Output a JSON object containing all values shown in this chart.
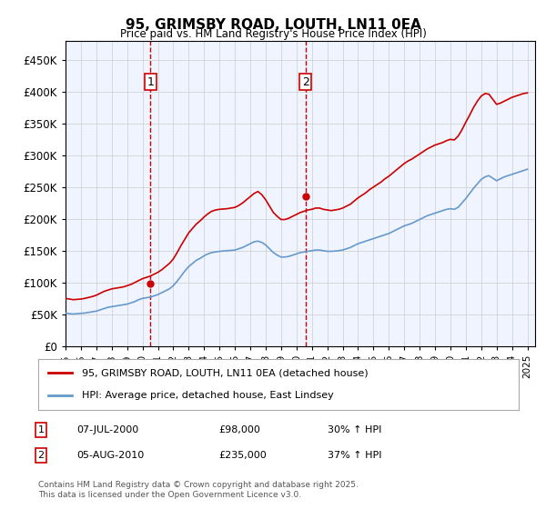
{
  "title": "95, GRIMSBY ROAD, LOUTH, LN11 0EA",
  "subtitle": "Price paid vs. HM Land Registry's House Price Index (HPI)",
  "ylabel_ticks": [
    "£0",
    "£50K",
    "£100K",
    "£150K",
    "£200K",
    "£250K",
    "£300K",
    "£350K",
    "£400K",
    "£450K"
  ],
  "ytick_values": [
    0,
    50000,
    100000,
    150000,
    200000,
    250000,
    300000,
    350000,
    400000,
    450000
  ],
  "ylim": [
    0,
    480000
  ],
  "xlim_start": 1995.0,
  "xlim_end": 2025.5,
  "background_color": "#f0f4ff",
  "plot_bg_color": "#f0f4ff",
  "red_line_color": "#cc0000",
  "blue_line_color": "#6699cc",
  "vline_color": "#cc0000",
  "grid_color": "#cccccc",
  "transaction1_x": 2000.52,
  "transaction1_y": 98000,
  "transaction2_x": 2010.59,
  "transaction2_y": 235000,
  "legend_label_red": "95, GRIMSBY ROAD, LOUTH, LN11 0EA (detached house)",
  "legend_label_blue": "HPI: Average price, detached house, East Lindsey",
  "footnote": "Contains HM Land Registry data © Crown copyright and database right 2025.\nThis data is licensed under the Open Government Licence v3.0.",
  "table_row1": "1    07-JUL-2000    £98,000    30% ↑ HPI",
  "table_row2": "2    05-AUG-2010    £235,000    37% ↑ HPI",
  "hpi_data": {
    "years": [
      1995.0,
      1995.25,
      1995.5,
      1995.75,
      1996.0,
      1996.25,
      1996.5,
      1996.75,
      1997.0,
      1997.25,
      1997.5,
      1997.75,
      1998.0,
      1998.25,
      1998.5,
      1998.75,
      1999.0,
      1999.25,
      1999.5,
      1999.75,
      2000.0,
      2000.25,
      2000.5,
      2000.75,
      2001.0,
      2001.25,
      2001.5,
      2001.75,
      2002.0,
      2002.25,
      2002.5,
      2002.75,
      2003.0,
      2003.25,
      2003.5,
      2003.75,
      2004.0,
      2004.25,
      2004.5,
      2004.75,
      2005.0,
      2005.25,
      2005.5,
      2005.75,
      2006.0,
      2006.25,
      2006.5,
      2006.75,
      2007.0,
      2007.25,
      2007.5,
      2007.75,
      2008.0,
      2008.25,
      2008.5,
      2008.75,
      2009.0,
      2009.25,
      2009.5,
      2009.75,
      2010.0,
      2010.25,
      2010.5,
      2010.75,
      2011.0,
      2011.25,
      2011.5,
      2011.75,
      2012.0,
      2012.25,
      2012.5,
      2012.75,
      2013.0,
      2013.25,
      2013.5,
      2013.75,
      2014.0,
      2014.25,
      2014.5,
      2014.75,
      2015.0,
      2015.25,
      2015.5,
      2015.75,
      2016.0,
      2016.25,
      2016.5,
      2016.75,
      2017.0,
      2017.25,
      2017.5,
      2017.75,
      2018.0,
      2018.25,
      2018.5,
      2018.75,
      2019.0,
      2019.25,
      2019.5,
      2019.75,
      2020.0,
      2020.25,
      2020.5,
      2020.75,
      2021.0,
      2021.25,
      2021.5,
      2021.75,
      2022.0,
      2022.25,
      2022.5,
      2022.75,
      2023.0,
      2023.25,
      2023.5,
      2023.75,
      2024.0,
      2024.25,
      2024.5,
      2024.75,
      2025.0
    ],
    "values": [
      52000,
      51000,
      50500,
      51000,
      51500,
      52000,
      53000,
      54000,
      55000,
      57000,
      59000,
      61000,
      62000,
      63000,
      64000,
      65000,
      66000,
      68000,
      70000,
      73000,
      75000,
      76000,
      77000,
      79000,
      81000,
      84000,
      87000,
      90000,
      95000,
      102000,
      110000,
      118000,
      125000,
      130000,
      135000,
      138000,
      142000,
      145000,
      147000,
      148000,
      149000,
      149500,
      150000,
      150500,
      151000,
      153000,
      155000,
      158000,
      161000,
      164000,
      165000,
      163000,
      159000,
      153000,
      147000,
      143000,
      140000,
      140000,
      141000,
      143000,
      145000,
      147000,
      148000,
      149000,
      150000,
      151000,
      151000,
      150000,
      149000,
      149000,
      149500,
      150000,
      151000,
      153000,
      155000,
      158000,
      161000,
      163000,
      165000,
      167000,
      169000,
      171000,
      173000,
      175000,
      177000,
      180000,
      183000,
      186000,
      189000,
      191000,
      193000,
      196000,
      199000,
      202000,
      205000,
      207000,
      209000,
      211000,
      213000,
      215000,
      216000,
      215000,
      218000,
      225000,
      232000,
      240000,
      248000,
      255000,
      262000,
      266000,
      268000,
      264000,
      260000,
      263000,
      266000,
      268000,
      270000,
      272000,
      274000,
      276000,
      278000
    ]
  },
  "hpi_red_data": {
    "years": [
      1995.0,
      1995.25,
      1995.5,
      1995.75,
      1996.0,
      1996.25,
      1996.5,
      1996.75,
      1997.0,
      1997.25,
      1997.5,
      1997.75,
      1998.0,
      1998.25,
      1998.5,
      1998.75,
      1999.0,
      1999.25,
      1999.5,
      1999.75,
      2000.0,
      2000.25,
      2000.5,
      2000.75,
      2001.0,
      2001.25,
      2001.5,
      2001.75,
      2002.0,
      2002.25,
      2002.5,
      2002.75,
      2003.0,
      2003.25,
      2003.5,
      2003.75,
      2004.0,
      2004.25,
      2004.5,
      2004.75,
      2005.0,
      2005.25,
      2005.5,
      2005.75,
      2006.0,
      2006.25,
      2006.5,
      2006.75,
      2007.0,
      2007.25,
      2007.5,
      2007.75,
      2008.0,
      2008.25,
      2008.5,
      2008.75,
      2009.0,
      2009.25,
      2009.5,
      2009.75,
      2010.0,
      2010.25,
      2010.5,
      2010.75,
      2011.0,
      2011.25,
      2011.5,
      2011.75,
      2012.0,
      2012.25,
      2012.5,
      2012.75,
      2013.0,
      2013.25,
      2013.5,
      2013.75,
      2014.0,
      2014.25,
      2014.5,
      2014.75,
      2015.0,
      2015.25,
      2015.5,
      2015.75,
      2016.0,
      2016.25,
      2016.5,
      2016.75,
      2017.0,
      2017.25,
      2017.5,
      2017.75,
      2018.0,
      2018.25,
      2018.5,
      2018.75,
      2019.0,
      2019.25,
      2019.5,
      2019.75,
      2020.0,
      2020.25,
      2020.5,
      2020.75,
      2021.0,
      2021.25,
      2021.5,
      2021.75,
      2022.0,
      2022.25,
      2022.5,
      2022.75,
      2023.0,
      2023.25,
      2023.5,
      2023.75,
      2024.0,
      2024.25,
      2024.5,
      2024.75,
      2025.0
    ],
    "values": [
      75000,
      74000,
      73000,
      73500,
      74000,
      75000,
      76500,
      78000,
      80000,
      83000,
      86000,
      88000,
      90000,
      91000,
      92000,
      93000,
      95000,
      97000,
      100000,
      103000,
      106000,
      108000,
      110000,
      113000,
      116000,
      120000,
      125000,
      130000,
      137000,
      147000,
      158000,
      168000,
      178000,
      185000,
      192000,
      197000,
      203000,
      208000,
      212000,
      214000,
      215000,
      215500,
      216000,
      217000,
      218000,
      221000,
      225000,
      230000,
      235000,
      240000,
      243000,
      238000,
      230000,
      220000,
      210000,
      204000,
      199000,
      199000,
      201000,
      204000,
      207000,
      210000,
      212000,
      214000,
      215000,
      217000,
      217000,
      215000,
      214000,
      213000,
      214000,
      215000,
      217000,
      220000,
      223000,
      228000,
      233000,
      237000,
      241000,
      246000,
      250000,
      254000,
      258000,
      263000,
      267000,
      272000,
      277000,
      282000,
      287000,
      291000,
      294000,
      298000,
      302000,
      306000,
      310000,
      313000,
      316000,
      318000,
      320000,
      323000,
      325000,
      324000,
      330000,
      340000,
      352000,
      363000,
      375000,
      385000,
      393000,
      397000,
      396000,
      388000,
      380000,
      382000,
      385000,
      388000,
      391000,
      393000,
      395000,
      397000,
      398000
    ]
  }
}
